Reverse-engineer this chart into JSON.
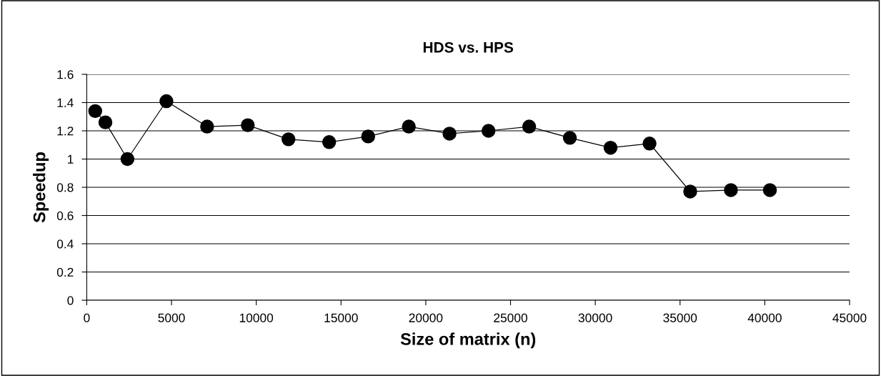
{
  "chart_data": {
    "type": "line",
    "title": "HDS vs. HPS",
    "xlabel": "Size of matrix (n)",
    "ylabel": "Speedup",
    "x": [
      500,
      1100,
      2400,
      4700,
      7100,
      9500,
      11900,
      14300,
      16600,
      19000,
      21400,
      23700,
      26100,
      28500,
      30900,
      33200,
      35600,
      38000,
      40300
    ],
    "series": [
      {
        "color": "#000000",
        "values": [
          1.34,
          1.26,
          1.0,
          1.41,
          1.23,
          1.24,
          1.14,
          1.12,
          1.16,
          1.23,
          1.18,
          1.2,
          1.23,
          1.15,
          1.08,
          1.11,
          0.77,
          0.78,
          0.78
        ]
      }
    ],
    "xlim": [
      0,
      45000
    ],
    "xticks": [
      0,
      5000,
      10000,
      15000,
      20000,
      25000,
      30000,
      35000,
      40000,
      45000
    ],
    "ylim": [
      0,
      1.6
    ],
    "yticks": [
      {
        "value": 0,
        "label": "0"
      },
      {
        "value": 0.2,
        "label": "0.2"
      },
      {
        "value": 0.4,
        "label": "0.4"
      },
      {
        "value": 0.6,
        "label": "0.6"
      },
      {
        "value": 0.8,
        "label": "0.8"
      },
      {
        "value": 1,
        "label": "1"
      },
      {
        "value": 1.2,
        "label": "1.2"
      },
      {
        "value": 1.4,
        "label": "1.4"
      },
      {
        "value": 1.6,
        "label": "1.6"
      }
    ],
    "grid": "y",
    "marker": "circle",
    "line_style": "solid",
    "legend": false
  }
}
